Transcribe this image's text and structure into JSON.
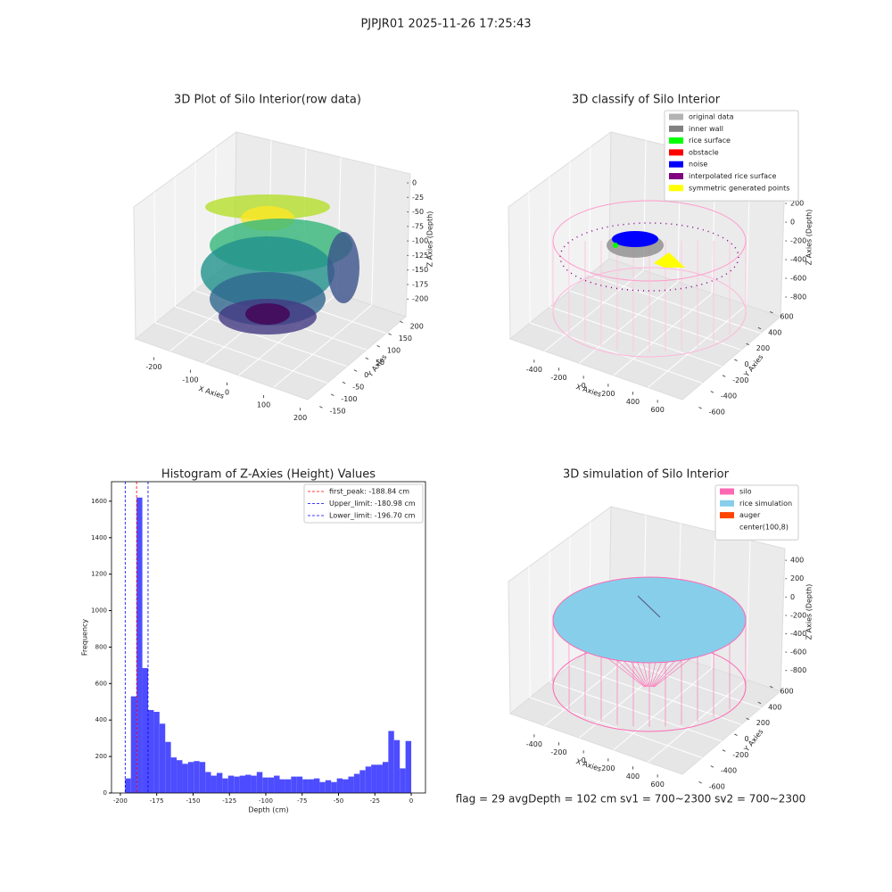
{
  "title": "PJPJR01 2025-11-26 17:25:43",
  "annotation": "flag = 29  avgDepth = 102 cm  sv1 = 700~2300  sv2 = 700~2300",
  "chart_data": [
    {
      "type": "scatter3d",
      "title": "3D Plot of Silo Interior(row data)",
      "xlabel": "X Axies",
      "ylabel": "Y Axies",
      "zlabel": "Z Axies (Depth)",
      "xlim": [
        -240,
        240
      ],
      "ylim": [
        -175,
        225
      ],
      "zlim": [
        -215,
        10
      ],
      "xticks": [
        -200,
        -100,
        0,
        100,
        200
      ],
      "yticks": [
        -150,
        -100,
        -50,
        0,
        50,
        100,
        150,
        200
      ],
      "zticks": [
        0,
        -25,
        -50,
        -75,
        -100,
        -125,
        -150,
        -175,
        -200
      ]
    },
    {
      "type": "scatter3d",
      "title": "3D classify of Silo Interior",
      "xlabel": "X Axies",
      "ylabel": "Y Axies",
      "zlabel": "Z Axies (Depth)",
      "xlim": [
        -500,
        700
      ],
      "ylim": [
        -700,
        700
      ],
      "zlim": [
        -900,
        450
      ],
      "xticks": [
        -400,
        -200,
        0,
        200,
        400,
        600
      ],
      "yticks": [
        -600,
        -400,
        -200,
        0,
        200,
        400,
        600
      ],
      "zticks": [
        200,
        0,
        -200,
        -400,
        -600,
        -800
      ],
      "legend": [
        {
          "name": "original data",
          "color": "#b3b3b3"
        },
        {
          "name": "inner wall",
          "color": "#808080"
        },
        {
          "name": "rice surface",
          "color": "#00ff00"
        },
        {
          "name": "obstacle",
          "color": "#ff0000"
        },
        {
          "name": "noise",
          "color": "#0000ff"
        },
        {
          "name": "interpolated rice surface",
          "color": "#800080"
        },
        {
          "name": "symmetric generated points",
          "color": "#ffff00"
        }
      ]
    },
    {
      "type": "histogram",
      "title": "Histogram of Z-Axies (Height) Values",
      "xlabel": "Depth (cm)",
      "ylabel": "Frequency",
      "color": "#4d4dff",
      "bins": [
        -196.7,
        -192.77,
        -188.83,
        -184.9,
        -180.96,
        -177.03,
        -173.1,
        -169.16,
        -165.23,
        -161.29,
        -157.36,
        -153.43,
        -149.49,
        -145.56,
        -141.62,
        -137.69,
        -133.76,
        -129.82,
        -125.89,
        -121.95,
        -118.02,
        -114.09,
        -110.15,
        -106.22,
        -102.28,
        -98.35,
        -94.42,
        -90.48,
        -86.55,
        -82.61,
        -78.68,
        -74.75,
        -70.81,
        -66.88,
        -62.94,
        -59.01,
        -55.08,
        -51.14,
        -47.21,
        -43.27,
        -39.34,
        -35.41,
        -31.47,
        -27.54,
        -23.6,
        -19.67,
        -15.74,
        -11.8,
        -7.87,
        -3.93,
        0
      ],
      "values": [
        80,
        530,
        1620,
        685,
        455,
        445,
        380,
        280,
        195,
        180,
        160,
        170,
        175,
        170,
        115,
        95,
        110,
        80,
        95,
        90,
        95,
        100,
        95,
        115,
        85,
        85,
        95,
        75,
        75,
        90,
        90,
        75,
        75,
        80,
        60,
        70,
        60,
        80,
        75,
        90,
        105,
        125,
        145,
        155,
        155,
        170,
        340,
        290,
        135,
        285
      ],
      "xlim": [
        -206.1,
        9.8
      ],
      "ylim": [
        0,
        1707
      ],
      "xticks": [
        -200,
        -175,
        -150,
        -125,
        -100,
        -75,
        -50,
        -25,
        0
      ],
      "yticks": [
        0,
        200,
        400,
        600,
        800,
        1000,
        1200,
        1400,
        1600
      ],
      "lines": [
        {
          "name": "first_peak: -188.84 cm",
          "value": -188.84,
          "color": "#ff0000"
        },
        {
          "name": "Upper_limit: -180.98 cm",
          "value": -180.98,
          "color": "#0000ff"
        },
        {
          "name": "Lower_limit: -196.70 cm",
          "value": -196.7,
          "color": "#0000ff"
        }
      ]
    },
    {
      "type": "scatter3d",
      "title": "3D simulation of Silo Interior",
      "xlabel": "X Axies",
      "ylabel": "Y Axies",
      "zlabel": "Z Axies (Depth)",
      "xlim": [
        -500,
        700
      ],
      "ylim": [
        -700,
        700
      ],
      "zlim": [
        -900,
        450
      ],
      "xticks": [
        -400,
        -200,
        0,
        200,
        400,
        600
      ],
      "yticks": [
        -600,
        -400,
        -200,
        0,
        200,
        400,
        600
      ],
      "zticks": [
        400,
        200,
        0,
        -200,
        -400,
        -600,
        -800
      ],
      "legend": [
        {
          "name": "silo",
          "color": "#ff69b4"
        },
        {
          "name": "rice simulation",
          "color": "#87ceeb"
        },
        {
          "name": "auger",
          "color": "#ff4500"
        },
        {
          "name": "center(100,8)",
          "color": "#ffffff"
        }
      ]
    }
  ]
}
